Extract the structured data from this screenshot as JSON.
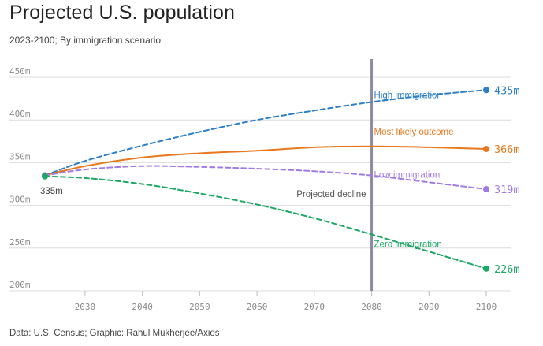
{
  "header": {
    "title": "Projected U.S. population",
    "subtitle": "2023-2100; By immigration scenario"
  },
  "footer": {
    "source": "Data: U.S. Census; Graphic: Rahul Mukherjee/Axios"
  },
  "chart_data": {
    "type": "line",
    "title": "Projected U.S. population",
    "subtitle": "2023-2100; By immigration scenario",
    "xlabel": "",
    "ylabel": "",
    "xlim": [
      2023,
      2100
    ],
    "ylim": [
      200,
      450
    ],
    "x_ticks": [
      2030,
      2040,
      2050,
      2060,
      2070,
      2080,
      2090,
      2100
    ],
    "x_tick_labels": [
      "2030",
      "2040",
      "2050",
      "2060",
      "2070",
      "2080",
      "2090",
      "2100"
    ],
    "y_ticks": [
      200,
      250,
      300,
      350,
      400,
      450
    ],
    "y_tick_labels": [
      "200m",
      "250m",
      "300m",
      "350m",
      "400m",
      "450m"
    ],
    "grid": true,
    "start_label": "335m",
    "vline": {
      "x": 2080,
      "label": "Projected decline",
      "color": "#8e8aa3"
    },
    "series": [
      {
        "name": "High immigration",
        "color": "#2b7fc8",
        "dashed": true,
        "end_label": "435m",
        "x": [
          2023,
          2030,
          2040,
          2050,
          2060,
          2070,
          2080,
          2090,
          2100
        ],
        "y": [
          335,
          352,
          370,
          386,
          400,
          411,
          421,
          429,
          435
        ]
      },
      {
        "name": "Most likely outcome",
        "color": "#e9781d",
        "dashed": false,
        "end_label": "366m",
        "x": [
          2023,
          2030,
          2040,
          2050,
          2060,
          2070,
          2080,
          2090,
          2100
        ],
        "y": [
          335,
          346,
          356,
          361,
          364,
          368,
          369,
          368,
          366
        ]
      },
      {
        "name": "Low immigration",
        "color": "#a07be6",
        "dashed": true,
        "end_label": "319m",
        "x": [
          2023,
          2030,
          2040,
          2050,
          2060,
          2070,
          2080,
          2090,
          2100
        ],
        "y": [
          335,
          342,
          346,
          345,
          343,
          340,
          335,
          327,
          319
        ]
      },
      {
        "name": "Zero immigration",
        "color": "#1aa862",
        "dashed": true,
        "end_label": "226m",
        "x": [
          2023,
          2030,
          2040,
          2050,
          2060,
          2070,
          2080,
          2090,
          2100
        ],
        "y": [
          334,
          332,
          325,
          314,
          301,
          285,
          266,
          246,
          226
        ]
      }
    ]
  }
}
